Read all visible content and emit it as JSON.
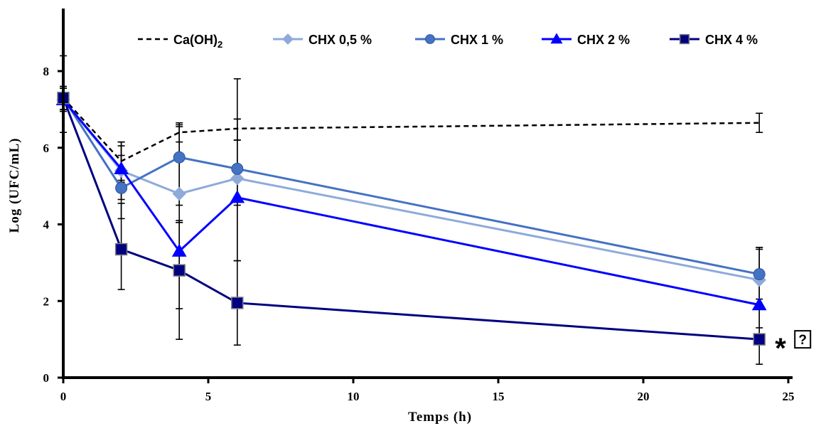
{
  "chart_data": {
    "type": "line",
    "title": "",
    "xlabel": "Temps (h)",
    "ylabel": "Log (UFC/mL)",
    "xlim": [
      0,
      25
    ],
    "ylim": [
      0,
      8
    ],
    "x_ticks": [
      "0",
      "5",
      "10",
      "15",
      "20",
      "25"
    ],
    "y_ticks": [
      "0",
      "2",
      "4",
      "6",
      "8"
    ],
    "x": [
      0,
      2,
      4,
      6,
      24
    ],
    "legend_position": "top",
    "grid": false,
    "series": [
      {
        "name": "Ca(OH)",
        "name_subscript": "2",
        "color": "#000000",
        "marker": "none",
        "dashed": true,
        "values": [
          7.3,
          5.65,
          6.4,
          6.5,
          6.65
        ],
        "err_low": [
          0.9,
          0.5,
          0.25,
          0.3,
          0.25
        ],
        "err_high": [
          1.1,
          0.5,
          0.25,
          0.25,
          0.25
        ]
      },
      {
        "name": "CHX 0,5 %",
        "color": "#8eaadb",
        "marker": "diamond",
        "dashed": false,
        "values": [
          7.25,
          5.4,
          4.8,
          5.2,
          2.55
        ],
        "err_low": [
          0.3,
          0.3,
          0.3,
          0.7,
          0.5
        ],
        "err_high": [
          0.3,
          0.4,
          1.8,
          1.0,
          0.8
        ]
      },
      {
        "name": "CHX 1 %",
        "color": "#4472c4",
        "marker": "circle",
        "dashed": false,
        "values": [
          7.3,
          4.95,
          5.75,
          5.45,
          2.7
        ],
        "err_low": [
          0.3,
          0.8,
          1.7,
          2.4,
          0.8
        ],
        "err_high": [
          0.3,
          1.2,
          0.8,
          1.3,
          0.7
        ]
      },
      {
        "name": "CHX 2 %",
        "color": "#0000ff",
        "marker": "triangle",
        "dashed": false,
        "values": [
          7.25,
          5.45,
          3.3,
          4.7,
          1.9
        ],
        "err_low": [
          0.3,
          0.8,
          1.5,
          1.65,
          0.6
        ],
        "err_high": [
          0.3,
          0.6,
          0.75,
          3.1,
          1.5
        ]
      },
      {
        "name": "CHX 4 %",
        "color": "#000080",
        "marker": "square",
        "dashed": false,
        "values": [
          7.3,
          3.35,
          2.8,
          1.95,
          1.0
        ],
        "err_low": [
          0.3,
          1.05,
          1.8,
          1.1,
          0.65
        ],
        "err_high": [
          0.3,
          1.2,
          1.3,
          1.1,
          0.8
        ]
      }
    ],
    "annotations": [
      "*",
      "⍰"
    ]
  }
}
